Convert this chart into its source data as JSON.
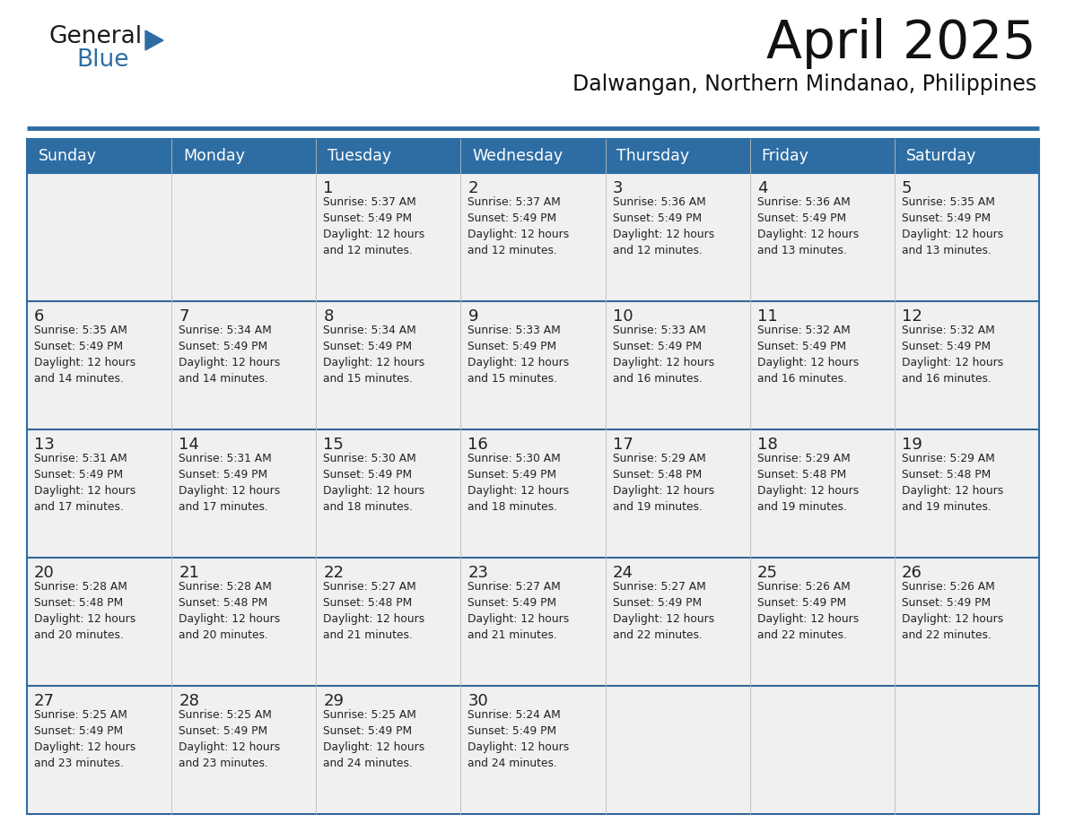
{
  "title": "April 2025",
  "subtitle": "Dalwangan, Northern Mindanao, Philippines",
  "header_bg": "#2E6DA4",
  "header_text": "#FFFFFF",
  "cell_bg": "#F0F0F0",
  "cell_text": "#222222",
  "border_color": "#2E6DA4",
  "row_line_color": "#336699",
  "days_of_week": [
    "Sunday",
    "Monday",
    "Tuesday",
    "Wednesday",
    "Thursday",
    "Friday",
    "Saturday"
  ],
  "calendar": [
    [
      {
        "day": "",
        "info": ""
      },
      {
        "day": "",
        "info": ""
      },
      {
        "day": "1",
        "info": "Sunrise: 5:37 AM\nSunset: 5:49 PM\nDaylight: 12 hours\nand 12 minutes."
      },
      {
        "day": "2",
        "info": "Sunrise: 5:37 AM\nSunset: 5:49 PM\nDaylight: 12 hours\nand 12 minutes."
      },
      {
        "day": "3",
        "info": "Sunrise: 5:36 AM\nSunset: 5:49 PM\nDaylight: 12 hours\nand 12 minutes."
      },
      {
        "day": "4",
        "info": "Sunrise: 5:36 AM\nSunset: 5:49 PM\nDaylight: 12 hours\nand 13 minutes."
      },
      {
        "day": "5",
        "info": "Sunrise: 5:35 AM\nSunset: 5:49 PM\nDaylight: 12 hours\nand 13 minutes."
      }
    ],
    [
      {
        "day": "6",
        "info": "Sunrise: 5:35 AM\nSunset: 5:49 PM\nDaylight: 12 hours\nand 14 minutes."
      },
      {
        "day": "7",
        "info": "Sunrise: 5:34 AM\nSunset: 5:49 PM\nDaylight: 12 hours\nand 14 minutes."
      },
      {
        "day": "8",
        "info": "Sunrise: 5:34 AM\nSunset: 5:49 PM\nDaylight: 12 hours\nand 15 minutes."
      },
      {
        "day": "9",
        "info": "Sunrise: 5:33 AM\nSunset: 5:49 PM\nDaylight: 12 hours\nand 15 minutes."
      },
      {
        "day": "10",
        "info": "Sunrise: 5:33 AM\nSunset: 5:49 PM\nDaylight: 12 hours\nand 16 minutes."
      },
      {
        "day": "11",
        "info": "Sunrise: 5:32 AM\nSunset: 5:49 PM\nDaylight: 12 hours\nand 16 minutes."
      },
      {
        "day": "12",
        "info": "Sunrise: 5:32 AM\nSunset: 5:49 PM\nDaylight: 12 hours\nand 16 minutes."
      }
    ],
    [
      {
        "day": "13",
        "info": "Sunrise: 5:31 AM\nSunset: 5:49 PM\nDaylight: 12 hours\nand 17 minutes."
      },
      {
        "day": "14",
        "info": "Sunrise: 5:31 AM\nSunset: 5:49 PM\nDaylight: 12 hours\nand 17 minutes."
      },
      {
        "day": "15",
        "info": "Sunrise: 5:30 AM\nSunset: 5:49 PM\nDaylight: 12 hours\nand 18 minutes."
      },
      {
        "day": "16",
        "info": "Sunrise: 5:30 AM\nSunset: 5:49 PM\nDaylight: 12 hours\nand 18 minutes."
      },
      {
        "day": "17",
        "info": "Sunrise: 5:29 AM\nSunset: 5:48 PM\nDaylight: 12 hours\nand 19 minutes."
      },
      {
        "day": "18",
        "info": "Sunrise: 5:29 AM\nSunset: 5:48 PM\nDaylight: 12 hours\nand 19 minutes."
      },
      {
        "day": "19",
        "info": "Sunrise: 5:29 AM\nSunset: 5:48 PM\nDaylight: 12 hours\nand 19 minutes."
      }
    ],
    [
      {
        "day": "20",
        "info": "Sunrise: 5:28 AM\nSunset: 5:48 PM\nDaylight: 12 hours\nand 20 minutes."
      },
      {
        "day": "21",
        "info": "Sunrise: 5:28 AM\nSunset: 5:48 PM\nDaylight: 12 hours\nand 20 minutes."
      },
      {
        "day": "22",
        "info": "Sunrise: 5:27 AM\nSunset: 5:48 PM\nDaylight: 12 hours\nand 21 minutes."
      },
      {
        "day": "23",
        "info": "Sunrise: 5:27 AM\nSunset: 5:49 PM\nDaylight: 12 hours\nand 21 minutes."
      },
      {
        "day": "24",
        "info": "Sunrise: 5:27 AM\nSunset: 5:49 PM\nDaylight: 12 hours\nand 22 minutes."
      },
      {
        "day": "25",
        "info": "Sunrise: 5:26 AM\nSunset: 5:49 PM\nDaylight: 12 hours\nand 22 minutes."
      },
      {
        "day": "26",
        "info": "Sunrise: 5:26 AM\nSunset: 5:49 PM\nDaylight: 12 hours\nand 22 minutes."
      }
    ],
    [
      {
        "day": "27",
        "info": "Sunrise: 5:25 AM\nSunset: 5:49 PM\nDaylight: 12 hours\nand 23 minutes."
      },
      {
        "day": "28",
        "info": "Sunrise: 5:25 AM\nSunset: 5:49 PM\nDaylight: 12 hours\nand 23 minutes."
      },
      {
        "day": "29",
        "info": "Sunrise: 5:25 AM\nSunset: 5:49 PM\nDaylight: 12 hours\nand 24 minutes."
      },
      {
        "day": "30",
        "info": "Sunrise: 5:24 AM\nSunset: 5:49 PM\nDaylight: 12 hours\nand 24 minutes."
      },
      {
        "day": "",
        "info": ""
      },
      {
        "day": "",
        "info": ""
      },
      {
        "day": "",
        "info": ""
      }
    ]
  ],
  "logo_general_color": "#1a1a1a",
  "logo_blue_color": "#2E6DA4",
  "logo_triangle_color": "#2E6DA4"
}
